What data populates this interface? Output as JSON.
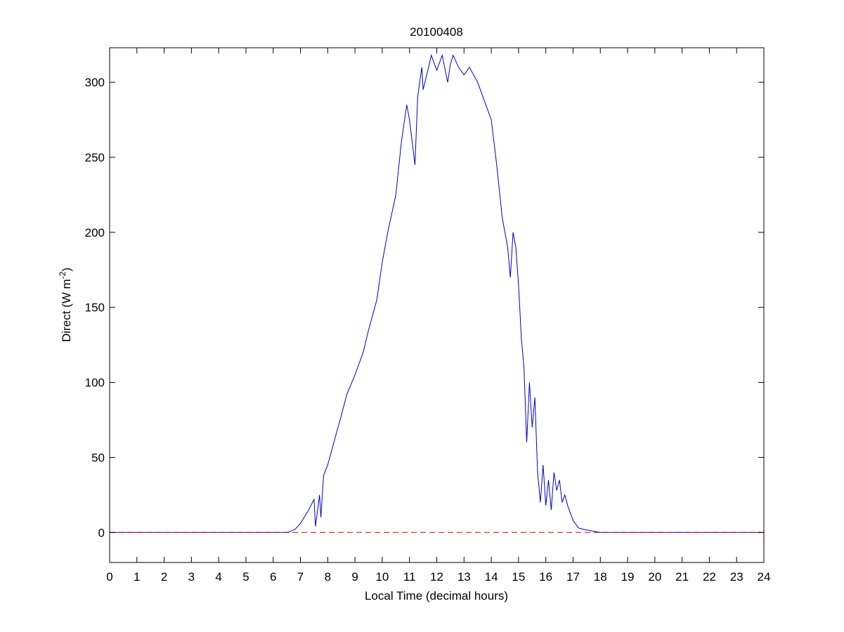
{
  "chart_data": {
    "type": "line",
    "title": "20100408",
    "xlabel": "Local Time (decimal hours)",
    "ylabel_main": "Direct (W m",
    "ylabel_sup": "-2",
    "ylabel_close": ")",
    "xlim": [
      0,
      24
    ],
    "ylim": [
      -20,
      323
    ],
    "xticks": [
      0,
      1,
      2,
      3,
      4,
      5,
      6,
      7,
      8,
      9,
      10,
      11,
      12,
      13,
      14,
      15,
      16,
      17,
      18,
      19,
      20,
      21,
      22,
      23,
      24
    ],
    "yticks": [
      0,
      50,
      100,
      150,
      200,
      250,
      300
    ],
    "grid": false,
    "series": [
      {
        "color": "#0000cc",
        "style": "solid",
        "x": [
          0,
          4,
          6.5,
          6.8,
          7.0,
          7.3,
          7.5,
          7.55,
          7.7,
          7.75,
          7.85,
          8.0,
          8.3,
          8.5,
          8.7,
          9.0,
          9.3,
          9.5,
          9.8,
          10.0,
          10.2,
          10.5,
          10.7,
          10.9,
          11.0,
          11.2,
          11.3,
          11.45,
          11.5,
          11.7,
          11.8,
          12.0,
          12.2,
          12.4,
          12.5,
          12.6,
          12.8,
          13.0,
          13.2,
          13.5,
          13.8,
          14.0,
          14.2,
          14.4,
          14.6,
          14.7,
          14.8,
          14.9,
          15.0,
          15.1,
          15.2,
          15.3,
          15.4,
          15.5,
          15.6,
          15.7,
          15.8,
          15.9,
          16.0,
          16.1,
          16.2,
          16.3,
          16.4,
          16.5,
          16.6,
          16.7,
          16.8,
          17.0,
          17.2,
          17.4,
          17.7,
          18.0,
          20.0,
          24.0
        ],
        "y": [
          0,
          0,
          0,
          2,
          6,
          15,
          22,
          4,
          25,
          10,
          38,
          45,
          65,
          78,
          92,
          105,
          120,
          135,
          155,
          180,
          200,
          225,
          260,
          285,
          275,
          245,
          290,
          310,
          295,
          310,
          318,
          308,
          318,
          300,
          312,
          318,
          310,
          305,
          310,
          300,
          285,
          275,
          245,
          210,
          190,
          170,
          200,
          190,
          165,
          130,
          110,
          60,
          100,
          70,
          90,
          40,
          20,
          45,
          18,
          35,
          15,
          40,
          28,
          35,
          20,
          25,
          18,
          8,
          3,
          2,
          1,
          0,
          0,
          0
        ]
      },
      {
        "color": "#cc0000",
        "style": "dashed",
        "x": [
          0,
          24
        ],
        "y": [
          0,
          0
        ]
      }
    ]
  }
}
